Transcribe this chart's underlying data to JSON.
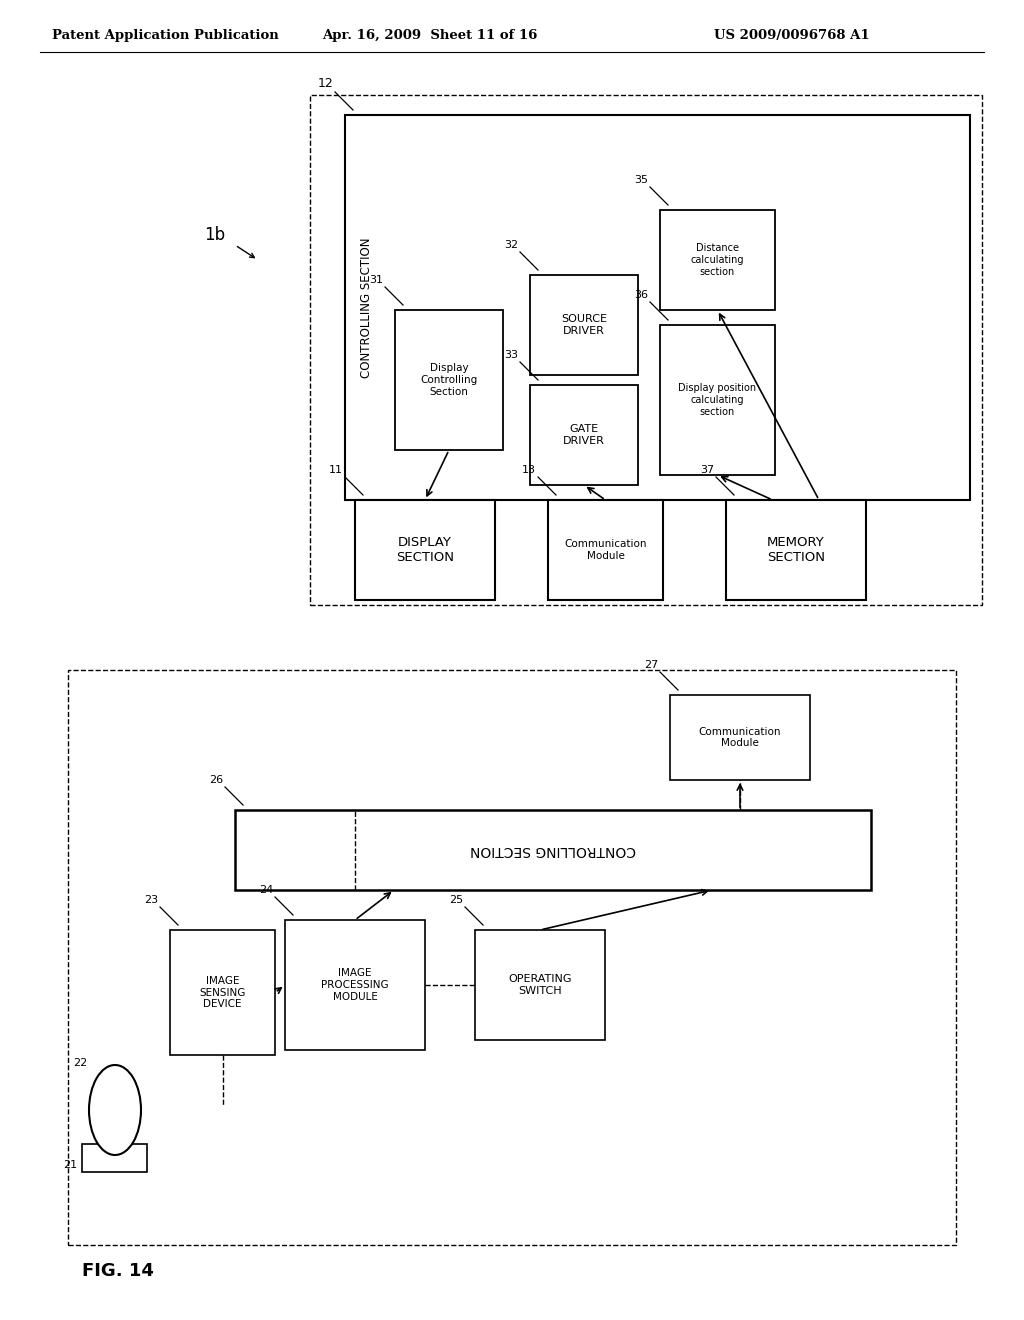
{
  "bg_color": "#ffffff",
  "header_left": "Patent Application Publication",
  "header_mid": "Apr. 16, 2009  Sheet 11 of 16",
  "header_right": "US 2009/0096768 A1",
  "fig_label": "FIG. 14"
}
